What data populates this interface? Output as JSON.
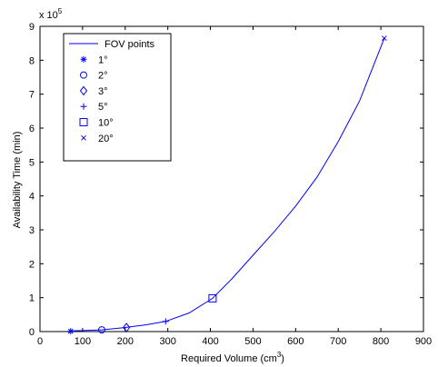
{
  "chart_data": {
    "type": "line",
    "xlabel": "Required Volume (cm",
    "xlabel_superscript": "3",
    "xlabel_suffix": ")",
    "ylabel": "Availability Time (min)",
    "y_exponent_base": "x 10",
    "y_exponent_power": "5",
    "xlim": [
      0,
      900
    ],
    "ylim": [
      0,
      9
    ],
    "xticks": [
      0,
      100,
      200,
      300,
      400,
      500,
      600,
      700,
      800,
      900
    ],
    "yticks": [
      0,
      1,
      2,
      3,
      4,
      5,
      6,
      7,
      8,
      9
    ],
    "grid": false,
    "legend_position": "top-left",
    "series": [
      {
        "name": "FOV points",
        "color": "#0000ff",
        "x": [
          70,
          100,
          145,
          200,
          250,
          295,
          350,
          405,
          450,
          500,
          550,
          600,
          650,
          700,
          750,
          808
        ],
        "y": [
          0.02,
          0.03,
          0.05,
          0.12,
          0.2,
          0.3,
          0.55,
          0.98,
          1.55,
          2.25,
          2.95,
          3.7,
          4.55,
          5.6,
          6.8,
          8.65
        ]
      }
    ],
    "markers": [
      {
        "label": "1°",
        "symbol": "asterisk",
        "x": 72,
        "y": 0.01
      },
      {
        "label": "2°",
        "symbol": "circle",
        "x": 145,
        "y": 0.05
      },
      {
        "label": "3°",
        "symbol": "diamond",
        "x": 203,
        "y": 0.12
      },
      {
        "label": "5°",
        "symbol": "plus",
        "x": 295,
        "y": 0.3
      },
      {
        "label": "10°",
        "symbol": "square",
        "x": 405,
        "y": 0.98
      },
      {
        "label": "20°",
        "symbol": "x",
        "x": 808,
        "y": 8.65
      }
    ],
    "legend": [
      {
        "label": "FOV points",
        "symbol": "line"
      },
      {
        "label": "1°",
        "symbol": "asterisk"
      },
      {
        "label": "2°",
        "symbol": "circle"
      },
      {
        "label": "3°",
        "symbol": "diamond"
      },
      {
        "label": "5°",
        "symbol": "plus"
      },
      {
        "label": "10°",
        "symbol": "square"
      },
      {
        "label": "20°",
        "symbol": "x"
      }
    ]
  }
}
